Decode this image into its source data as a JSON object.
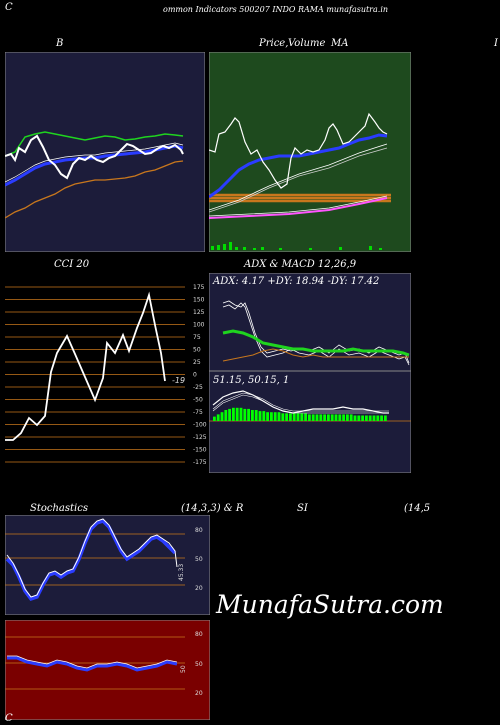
{
  "header": {
    "left_letter": "C",
    "title": "ommon  Indicators 500207 INDO RAMA munafasutra.in"
  },
  "bollinger": {
    "label": "B"
  },
  "price_ma": {
    "label_price": "Price,",
    "label_volume": "Volume",
    "label_ma": "MA",
    "right_letter": "I"
  },
  "cci": {
    "label": "CCI 20",
    "current": "-19",
    "ticks": [
      "175",
      "150",
      "125",
      "100",
      "75",
      "50",
      "25",
      "0",
      "-25",
      "-50",
      "-75",
      "-100",
      "-125",
      "-150",
      "-175"
    ]
  },
  "adx_macd": {
    "label": "ADX  & MACD 12,26,9",
    "adx_text": "ADX: 4.17  +DY: 18.94  -DY: 17.42",
    "macd_text": "51.15,  50.15,  1"
  },
  "stochastics": {
    "label_left": "Stochastics",
    "label_params": "(14,3,3) & R",
    "current": "45.33",
    "ticks": [
      "80",
      "50",
      "20"
    ]
  },
  "rsi": {
    "label": "SI",
    "params": "(14,5",
    "current": "50",
    "ticks": [
      "80",
      "50",
      "20"
    ]
  },
  "bottom": {
    "left_letter": "C"
  },
  "watermark": "MunafaSutra.com",
  "colors": {
    "panel_navy": "#1c1c3a",
    "panel_green": "#1e4a1e",
    "panel_black": "#000000",
    "panel_red": "#7a0000",
    "grid_orange": "#c8771d",
    "line_blue": "#2a3cff",
    "line_green": "#1fd41f"
  }
}
